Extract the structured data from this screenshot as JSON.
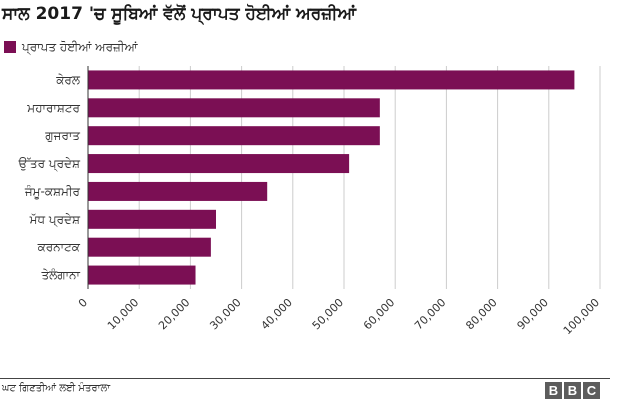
{
  "header": {
    "title": "ਸਾਲ 2017 'ਚ ਸੂਬਿਆਂ ਵੱਲੋਂ ਪ੍ਰਾਪਤ ਹੋਈਆਂ ਅਰਜ਼ੀਆਂ"
  },
  "footer": {
    "source": "ਘਟ ਗਿਣਤੀਆਂ ਲਈ ਮੰਤਰਾਲਾ",
    "logo_letters": [
      "B",
      "B",
      "C"
    ]
  },
  "colors": {
    "bar": "#7b0f54",
    "grid": "#cccccc",
    "axis": "#333333"
  },
  "chart_data": {
    "type": "bar",
    "orientation": "horizontal",
    "title": "ਸਾਲ 2017 'ਚ ਸੂਬਿਆਂ ਵੱਲੋਂ ਪ੍ਰਾਪਤ ਹੋਈਆਂ ਅਰਜ਼ੀਆਂ",
    "categories": [
      "ਕੇਰਲ",
      "ਮਹਾਰਾਸ਼ਟਰ",
      "ਗੁਜਰਾਤ",
      "ਉੱਤਰ ਪ੍ਰਦੇਸ਼",
      "ਜੰਮੂ-ਕਸ਼ਮੀਰ",
      "ਮੱਧ ਪ੍ਰਦੇਸ਼",
      "ਕਰਨਾਟਕ",
      "ਤੇਲੰਗਾਨਾ"
    ],
    "series": [
      {
        "name": "ਪ੍ਰਾਪਤ ਹੋਈਆਂ ਅਰਜ਼ੀਆਂ",
        "values": [
          95000,
          57000,
          57000,
          51000,
          35000,
          25000,
          24000,
          21000
        ]
      }
    ],
    "xlim": [
      0,
      100000
    ],
    "xticks": [
      0,
      10000,
      20000,
      30000,
      40000,
      50000,
      60000,
      70000,
      80000,
      90000,
      100000
    ],
    "xtick_labels": [
      "0",
      "10,000",
      "20,000",
      "30,000",
      "40,000",
      "50,000",
      "60,000",
      "70,000",
      "80,000",
      "90,000",
      "100,000"
    ],
    "legend": "top-left",
    "grid": "vertical"
  }
}
